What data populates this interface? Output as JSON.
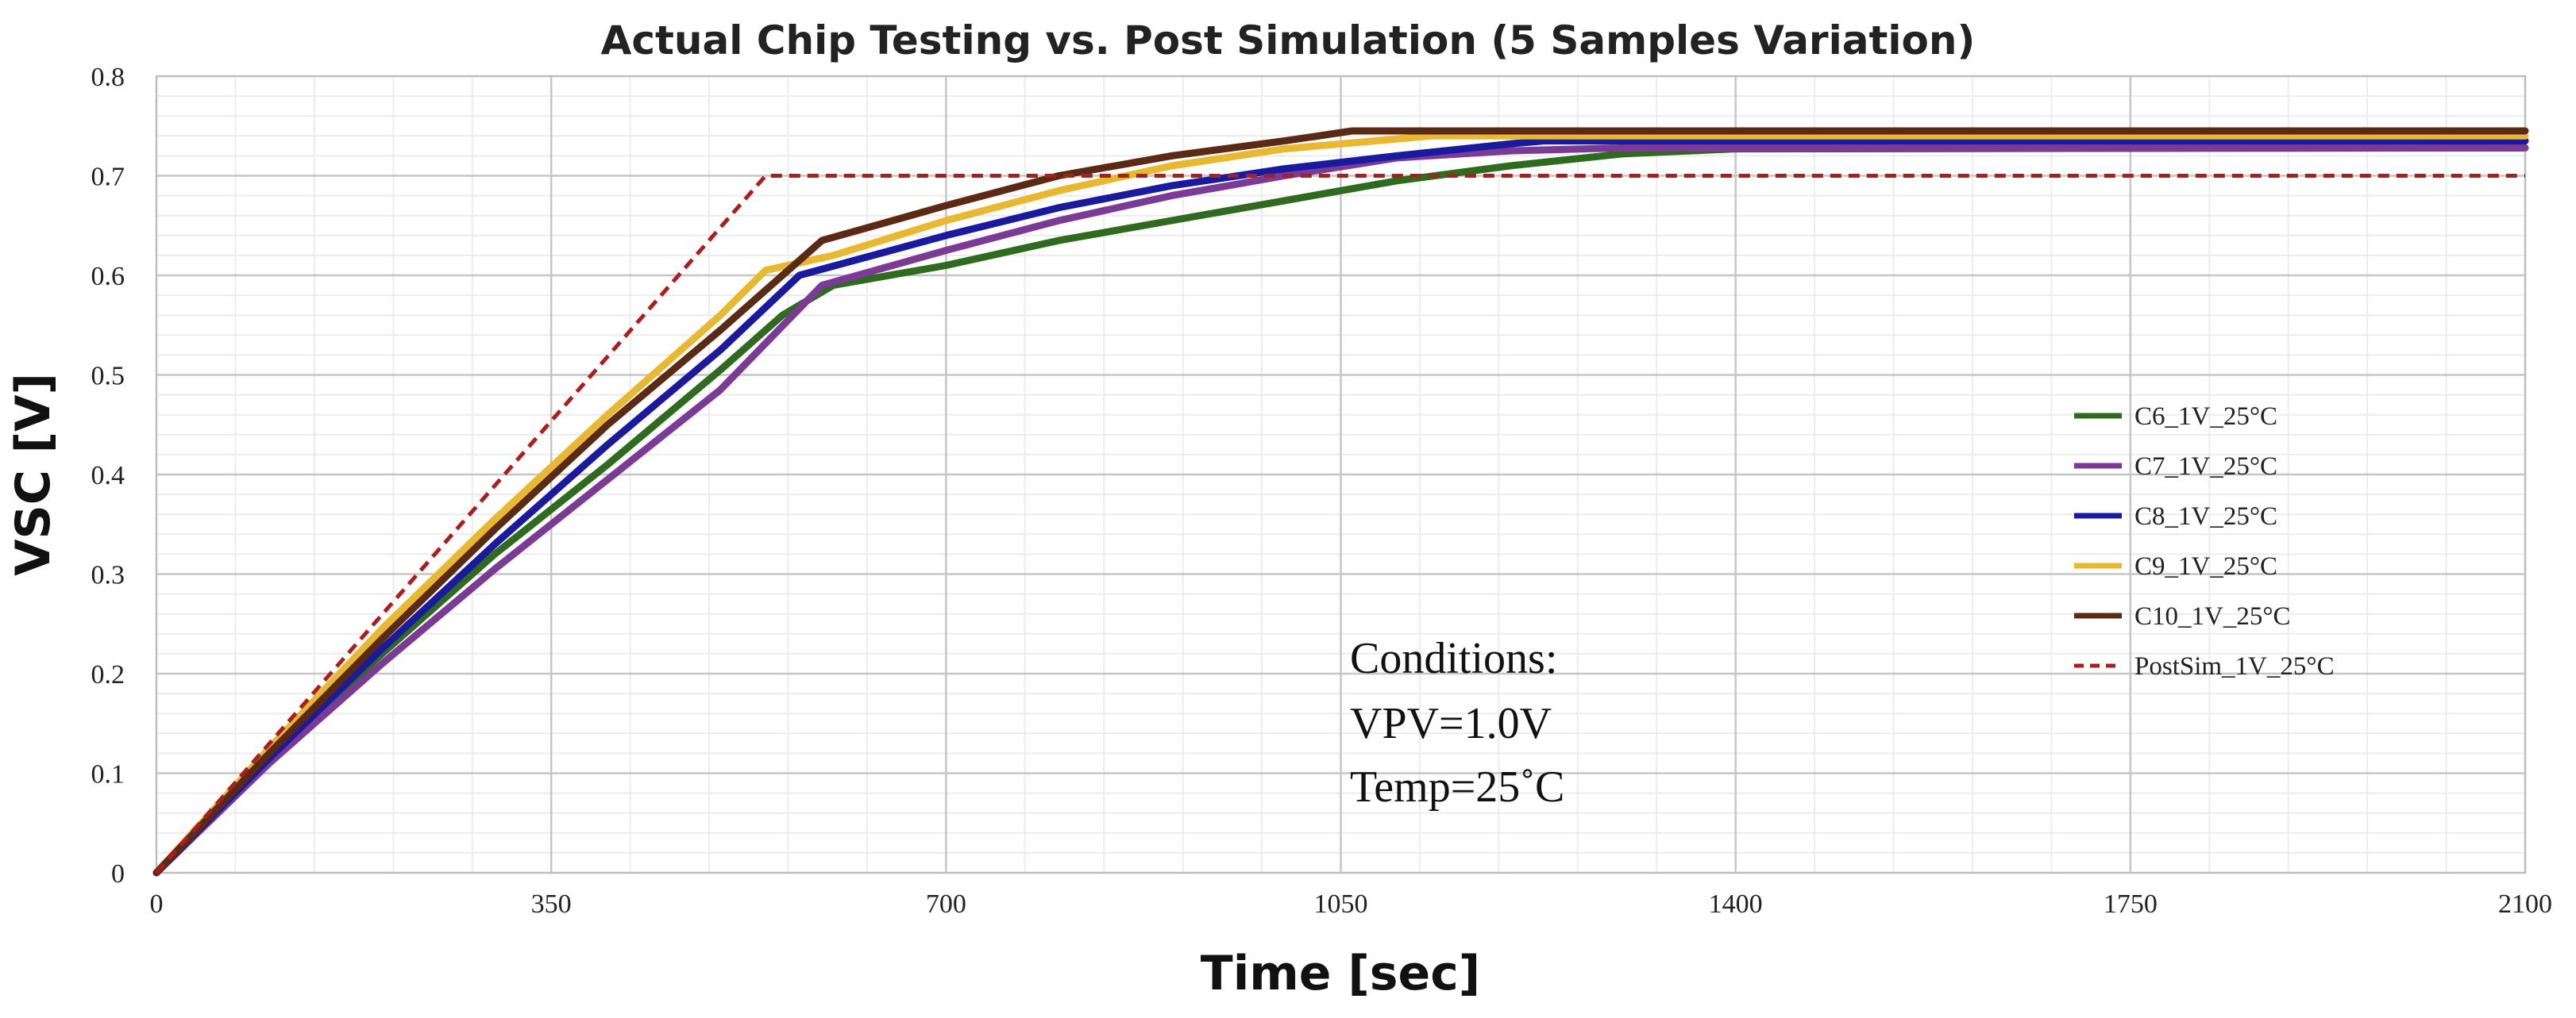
{
  "chart_data": {
    "type": "line",
    "title": "Actual Chip Testing vs. Post Simulation (5 Samples Variation)",
    "xlabel": "Time [sec]",
    "ylabel": "VSC [V]",
    "xlim": [
      0,
      2100
    ],
    "ylim": [
      0,
      0.8
    ],
    "x_ticks": [
      0,
      350,
      700,
      1050,
      1400,
      1750,
      2100
    ],
    "y_ticks": [
      0,
      0.1,
      0.2,
      0.3,
      0.4,
      0.5,
      0.6,
      0.7,
      0.8
    ],
    "x_tick_labels": [
      "0",
      "350",
      "700",
      "1050",
      "1400",
      "1750",
      "2100"
    ],
    "y_tick_labels": [
      "0",
      "0.1",
      "0.2",
      "0.3",
      "0.4",
      "0.5",
      "0.6",
      "0.7",
      "0.8"
    ],
    "grid": true,
    "legend_position": "bottom-right",
    "series": [
      {
        "name": "C6_1V_25°C",
        "color": "#2e6b1e",
        "dashed": false,
        "x": [
          0,
          100,
          200,
          300,
          400,
          500,
          555,
          600,
          700,
          800,
          900,
          1000,
          1100,
          1200,
          1300,
          1400,
          2100
        ],
        "y": [
          0,
          0.115,
          0.22,
          0.32,
          0.41,
          0.505,
          0.56,
          0.59,
          0.61,
          0.635,
          0.655,
          0.675,
          0.695,
          0.71,
          0.722,
          0.727,
          0.728
        ]
      },
      {
        "name": "C7_1V_25°C",
        "color": "#7a3a96",
        "dashed": false,
        "x": [
          0,
          100,
          200,
          300,
          400,
          500,
          590,
          700,
          800,
          900,
          1000,
          1100,
          1200,
          1300,
          2100
        ],
        "y": [
          0,
          0.11,
          0.21,
          0.305,
          0.395,
          0.485,
          0.59,
          0.625,
          0.655,
          0.68,
          0.7,
          0.718,
          0.725,
          0.728,
          0.728
        ]
      },
      {
        "name": "C8_1V_25°C",
        "color": "#1a1a9e",
        "dashed": false,
        "x": [
          0,
          100,
          200,
          300,
          400,
          500,
          570,
          700,
          800,
          900,
          1000,
          1100,
          1200,
          1230,
          2100
        ],
        "y": [
          0,
          0.115,
          0.225,
          0.33,
          0.43,
          0.525,
          0.6,
          0.64,
          0.668,
          0.69,
          0.707,
          0.72,
          0.732,
          0.735,
          0.735
        ]
      },
      {
        "name": "C9_1V_25°C",
        "color": "#e8b830",
        "dashed": false,
        "x": [
          0,
          100,
          200,
          300,
          400,
          500,
          540,
          600,
          700,
          800,
          900,
          1000,
          1100,
          1130,
          2100
        ],
        "y": [
          0,
          0.125,
          0.245,
          0.355,
          0.46,
          0.56,
          0.605,
          0.62,
          0.655,
          0.685,
          0.71,
          0.727,
          0.737,
          0.74,
          0.74
        ]
      },
      {
        "name": "C10_1V_25°C",
        "color": "#5a2a14",
        "dashed": false,
        "x": [
          0,
          100,
          200,
          300,
          400,
          500,
          590,
          700,
          800,
          900,
          1000,
          1060,
          2100
        ],
        "y": [
          0,
          0.12,
          0.235,
          0.345,
          0.45,
          0.545,
          0.635,
          0.67,
          0.7,
          0.72,
          0.735,
          0.745,
          0.745
        ]
      },
      {
        "name": "PostSim_1V_25°C",
        "color": "#b01c1c",
        "dashed": true,
        "x": [
          0,
          540,
          2100
        ],
        "y": [
          0,
          0.7,
          0.7
        ]
      }
    ],
    "annotation_lines": [
      "Conditions:",
      "VPV=1.0V",
      "Temp=25˚C"
    ]
  }
}
